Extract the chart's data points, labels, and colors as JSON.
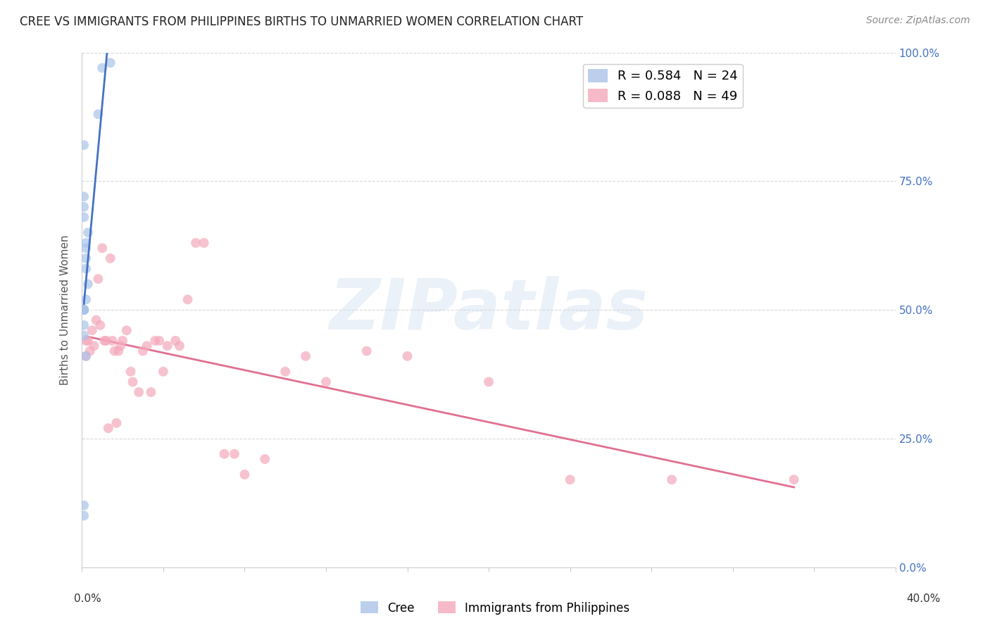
{
  "title": "CREE VS IMMIGRANTS FROM PHILIPPINES BIRTHS TO UNMARRIED WOMEN CORRELATION CHART",
  "source": "Source: ZipAtlas.com",
  "ylabel": "Births to Unmarried Women",
  "watermark": "ZIPatlas",
  "cree_color": "#aac4e8",
  "phil_color": "#f4a8bb",
  "cree_line_color": "#4472c4",
  "phil_line_color": "#e07090",
  "cree_points_x": [
    0.001,
    0.01,
    0.008,
    0.001,
    0.001,
    0.003,
    0.002,
    0.001,
    0.001,
    0.002,
    0.002,
    0.002,
    0.003,
    0.002,
    0.001,
    0.001,
    0.001,
    0.002,
    0.001,
    0.001,
    0.001,
    0.014,
    0.001,
    0.001
  ],
  "cree_points_y": [
    0.5,
    0.97,
    0.88,
    0.82,
    0.72,
    0.65,
    0.62,
    0.7,
    0.68,
    0.63,
    0.6,
    0.58,
    0.55,
    0.52,
    0.5,
    0.47,
    0.45,
    0.41,
    0.5,
    0.5,
    0.5,
    0.98,
    0.12,
    0.1
  ],
  "phil_points_x": [
    0.002,
    0.002,
    0.003,
    0.004,
    0.005,
    0.006,
    0.007,
    0.008,
    0.009,
    0.01,
    0.011,
    0.012,
    0.013,
    0.014,
    0.015,
    0.016,
    0.017,
    0.018,
    0.019,
    0.02,
    0.022,
    0.024,
    0.025,
    0.028,
    0.03,
    0.032,
    0.034,
    0.036,
    0.038,
    0.04,
    0.042,
    0.046,
    0.048,
    0.052,
    0.056,
    0.06,
    0.07,
    0.075,
    0.08,
    0.09,
    0.1,
    0.11,
    0.12,
    0.14,
    0.16,
    0.2,
    0.24,
    0.29,
    0.35
  ],
  "phil_points_y": [
    0.44,
    0.41,
    0.44,
    0.42,
    0.46,
    0.43,
    0.48,
    0.56,
    0.47,
    0.62,
    0.44,
    0.44,
    0.27,
    0.6,
    0.44,
    0.42,
    0.28,
    0.42,
    0.43,
    0.44,
    0.46,
    0.38,
    0.36,
    0.34,
    0.42,
    0.43,
    0.34,
    0.44,
    0.44,
    0.38,
    0.43,
    0.44,
    0.43,
    0.52,
    0.63,
    0.63,
    0.22,
    0.22,
    0.18,
    0.21,
    0.38,
    0.41,
    0.36,
    0.42,
    0.41,
    0.36,
    0.17,
    0.17,
    0.17
  ],
  "xlim": [
    0.0,
    0.4
  ],
  "ylim": [
    0.0,
    1.0
  ],
  "yticks": [
    0.0,
    0.25,
    0.5,
    0.75,
    1.0
  ],
  "yticklabels_right": [
    "0.0%",
    "25.0%",
    "50.0%",
    "75.0%",
    "100.0%"
  ],
  "background_color": "#ffffff",
  "grid_color": "#d0d0d0",
  "spine_color": "#cccccc",
  "title_fontsize": 12,
  "source_fontsize": 10,
  "ylabel_fontsize": 11,
  "tick_fontsize": 11,
  "legend_fontsize": 13,
  "scatter_size": 100,
  "scatter_alpha": 0.7,
  "line_width": 2.0
}
